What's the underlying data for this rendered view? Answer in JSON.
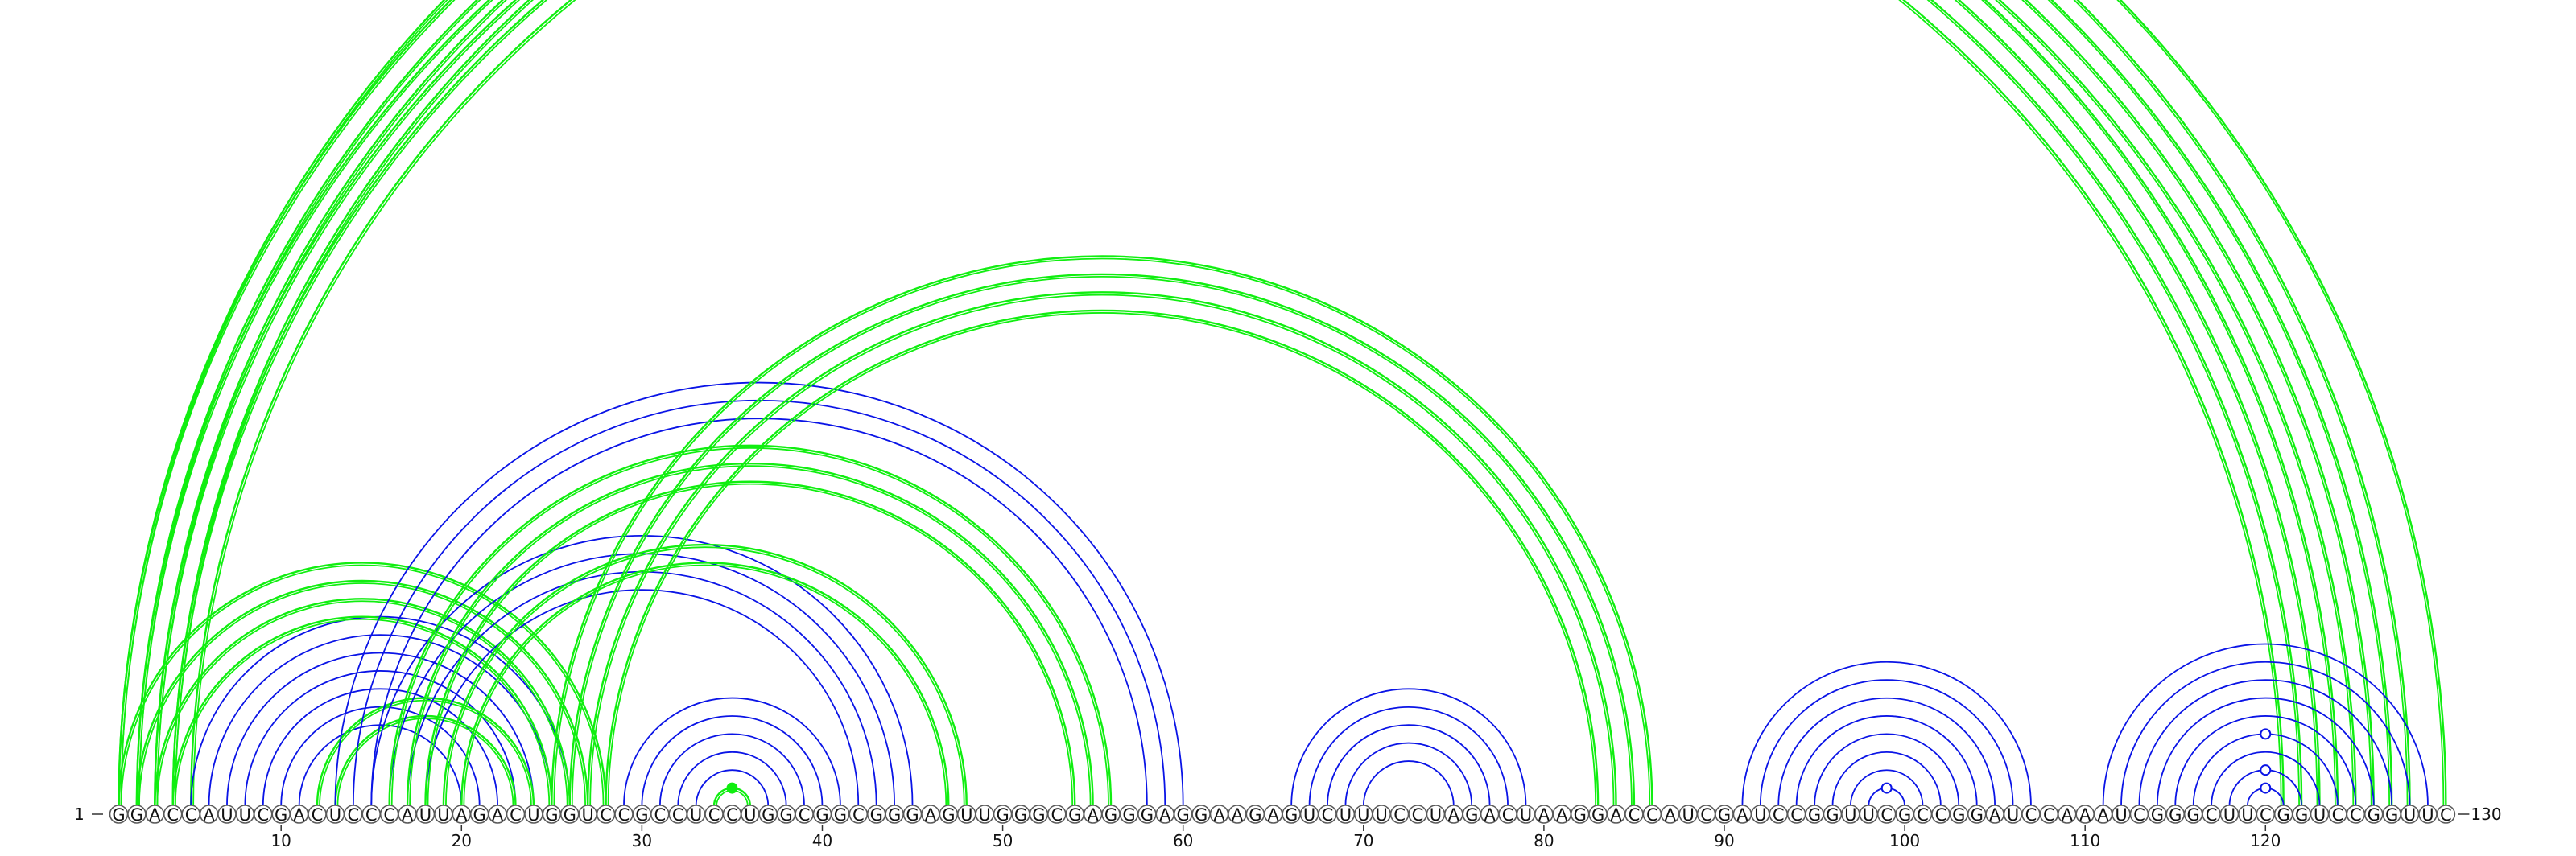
{
  "sequence": "GGACCAUUCGACUCCCAUUAGACUGGUCCGCCUCCUGGCGGCGGGAGUUGGGCGAGGGAGGAAGAGUCUUUCCUAGACUAAGGACCAUCGAUCCGGUUCGCCGGAUCCAAAUCGGGCUUCGGUCCGGUUC",
  "start_label": "1",
  "end_label": "130",
  "ticks": [
    "10",
    "20",
    "30",
    "40",
    "50",
    "60",
    "70",
    "80",
    "90",
    "100",
    "110",
    "120"
  ],
  "colors": {
    "blue": "#0a14e6",
    "green": "#10ee10",
    "nucleotide_outline": "#5a5a5a"
  },
  "arc_groups": [
    {
      "color": "green",
      "pairs": [
        [
          1,
          130
        ],
        [
          2,
          124
        ],
        [
          3,
          123
        ],
        [
          4,
          122
        ],
        [
          5,
          121
        ]
      ]
    },
    {
      "color": "green",
      "pairs": [
        [
          1,
          128
        ],
        [
          2,
          127
        ],
        [
          3,
          126
        ],
        [
          4,
          125
        ]
      ]
    },
    {
      "color": "blue",
      "pairs": [
        [
          5,
          26
        ],
        [
          6,
          25
        ],
        [
          7,
          24
        ],
        [
          8,
          23
        ],
        [
          9,
          22
        ],
        [
          10,
          21
        ],
        [
          11,
          20
        ]
      ]
    },
    {
      "color": "green",
      "pairs": [
        [
          1,
          28
        ],
        [
          2,
          27
        ],
        [
          3,
          26
        ],
        [
          4,
          25
        ],
        [
          12,
          24
        ],
        [
          13,
          23
        ]
      ]
    },
    {
      "color": "blue",
      "pairs": [
        [
          13,
          60
        ],
        [
          14,
          59
        ],
        [
          15,
          58
        ]
      ]
    },
    {
      "color": "blue",
      "pairs": [
        [
          15,
          45
        ],
        [
          16,
          44
        ],
        [
          17,
          43
        ],
        [
          18,
          42
        ]
      ]
    },
    {
      "color": "green",
      "pairs": [
        [
          16,
          56
        ],
        [
          17,
          55
        ],
        [
          18,
          54
        ],
        [
          19,
          48
        ],
        [
          20,
          47
        ]
      ]
    },
    {
      "color": "green",
      "pairs": [
        [
          25,
          86
        ],
        [
          26,
          85
        ],
        [
          27,
          84
        ],
        [
          28,
          83
        ]
      ]
    },
    {
      "color": "blue",
      "pairs": [
        [
          29,
          41
        ],
        [
          30,
          40
        ],
        [
          31,
          39
        ],
        [
          32,
          38
        ],
        [
          33,
          37
        ],
        [
          34,
          36
        ]
      ]
    },
    {
      "color": "green",
      "pairs": [
        [
          34,
          36
        ]
      ]
    },
    {
      "color": "blue",
      "pairs": [
        [
          66,
          79
        ],
        [
          67,
          78
        ],
        [
          68,
          77
        ],
        [
          69,
          76
        ],
        [
          70,
          75
        ]
      ]
    },
    {
      "color": "blue",
      "pairs": [
        [
          91,
          107
        ],
        [
          92,
          106
        ],
        [
          93,
          105
        ],
        [
          94,
          104
        ],
        [
          95,
          103
        ],
        [
          96,
          102
        ],
        [
          97,
          101
        ],
        [
          98,
          100
        ]
      ]
    },
    {
      "color": "blue",
      "pairs": [
        [
          111,
          129
        ],
        [
          112,
          128
        ],
        [
          113,
          127
        ],
        [
          114,
          126
        ],
        [
          115,
          125
        ],
        [
          116,
          124
        ],
        [
          117,
          123
        ],
        [
          118,
          122
        ],
        [
          119,
          121
        ]
      ]
    }
  ],
  "markers": [
    {
      "color": "green",
      "filled": true,
      "pair": [
        34,
        36
      ]
    },
    {
      "color": "blue",
      "filled": false,
      "pair": [
        98,
        100
      ]
    },
    {
      "color": "blue",
      "filled": false,
      "pair": [
        119,
        121
      ]
    },
    {
      "color": "blue",
      "filled": false,
      "pair": [
        118,
        122
      ]
    },
    {
      "color": "blue",
      "filled": false,
      "pair": [
        116,
        124
      ]
    }
  ]
}
